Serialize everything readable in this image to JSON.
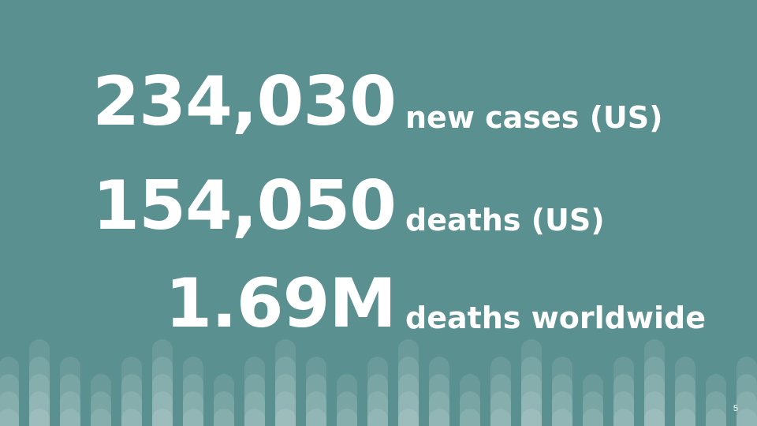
{
  "slide": {
    "background": "#5a908f",
    "accent": "#ffffff",
    "page_number": "5"
  },
  "stats": [
    {
      "value": "234,030",
      "label": "new cases (US)"
    },
    {
      "value": "154,050",
      "label": "deaths (US)"
    },
    {
      "value": "1.69M",
      "label": "deaths worldwide"
    }
  ]
}
